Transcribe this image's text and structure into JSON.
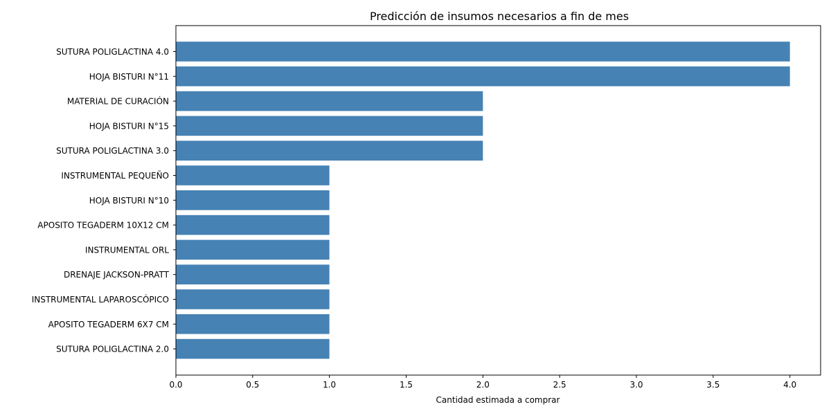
{
  "chart_data": {
    "type": "bar",
    "orientation": "horizontal",
    "title": "Predicción de insumos necesarios a fin de mes",
    "xlabel": "Cantidad estimada a comprar",
    "ylabel": "",
    "xlim": [
      0,
      4.2
    ],
    "xticks": [
      "0.0",
      "0.5",
      "1.0",
      "1.5",
      "2.0",
      "2.5",
      "3.0",
      "3.5",
      "4.0"
    ],
    "categories": [
      "SUTURA POLIGLACTINA 4.0",
      "HOJA BISTURI N°11",
      "MATERIAL DE CURACIÓN",
      "HOJA BISTURI N°15",
      "SUTURA POLIGLACTINA 3.0",
      "INSTRUMENTAL PEQUEÑO",
      "HOJA BISTURI N°10",
      "APOSITO TEGADERM 10X12 CM",
      "INSTRUMENTAL ORL",
      "DRENAJE JACKSON-PRATT",
      "INSTRUMENTAL LAPAROSCÓPICO",
      "APOSITO TEGADERM 6X7 CM",
      "SUTURA POLIGLACTINA 2.0"
    ],
    "values": [
      4,
      4,
      2,
      2,
      2,
      1,
      1,
      1,
      1,
      1,
      1,
      1,
      1
    ],
    "bar_color": "#4682b4",
    "grid": false,
    "legend": "none"
  }
}
